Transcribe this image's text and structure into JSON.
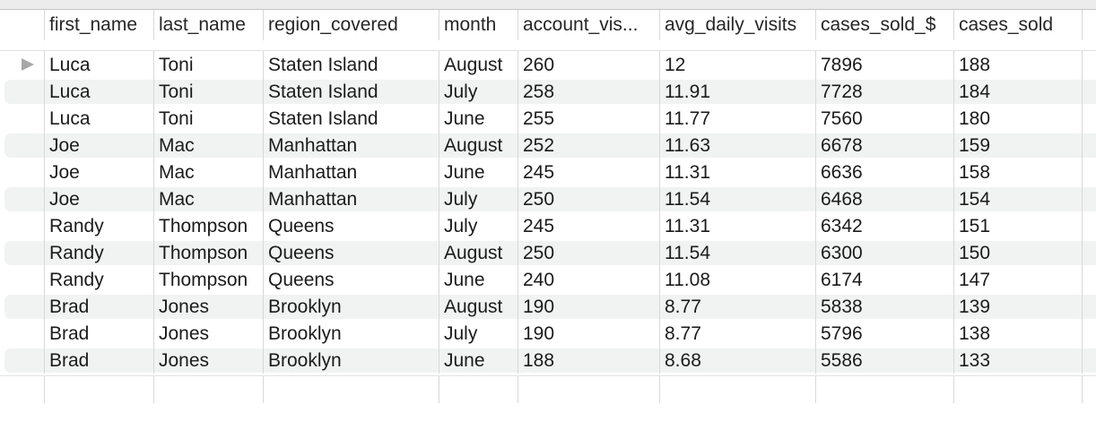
{
  "table": {
    "columns": [
      "first_name",
      "last_name",
      "region_covered",
      "month",
      "account_vis...",
      "avg_daily_visits",
      "cases_sold_$",
      "cases_sold"
    ],
    "selected_row": 0,
    "rows": [
      [
        "Luca",
        "Toni",
        "Staten Island",
        "August",
        "260",
        "12",
        "7896",
        "188"
      ],
      [
        "Luca",
        "Toni",
        "Staten Island",
        "July",
        "258",
        "11.91",
        "7728",
        "184"
      ],
      [
        "Luca",
        "Toni",
        "Staten Island",
        "June",
        "255",
        "11.77",
        "7560",
        "180"
      ],
      [
        "Joe",
        "Mac",
        "Manhattan",
        "August",
        "252",
        "11.63",
        "6678",
        "159"
      ],
      [
        "Joe",
        "Mac",
        "Manhattan",
        "June",
        "245",
        "11.31",
        "6636",
        "158"
      ],
      [
        "Joe",
        "Mac",
        "Manhattan",
        "July",
        "250",
        "11.54",
        "6468",
        "154"
      ],
      [
        "Randy",
        "Thompson",
        "Queens",
        "July",
        "245",
        "11.31",
        "6342",
        "151"
      ],
      [
        "Randy",
        "Thompson",
        "Queens",
        "August",
        "250",
        "11.54",
        "6300",
        "150"
      ],
      [
        "Randy",
        "Thompson",
        "Queens",
        "June",
        "240",
        "11.08",
        "6174",
        "147"
      ],
      [
        "Brad",
        "Jones",
        "Brooklyn",
        "August",
        "190",
        "8.77",
        "5838",
        "139"
      ],
      [
        "Brad",
        "Jones",
        "Brooklyn",
        "July",
        "190",
        "8.77",
        "5796",
        "138"
      ],
      [
        "Brad",
        "Jones",
        "Brooklyn",
        "June",
        "188",
        "8.68",
        "5586",
        "133"
      ]
    ]
  },
  "icons": {
    "row_marker": "current-row-triangle-icon"
  },
  "colors": {
    "alt_row": "#f1f2f2",
    "grid_line": "#d8d8d8",
    "marker": "#a8a8a8"
  }
}
